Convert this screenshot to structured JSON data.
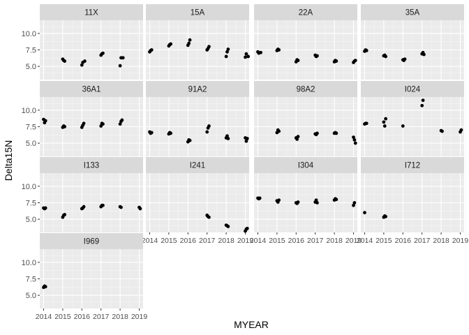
{
  "chart_data": {
    "type": "scatter",
    "xlabel": "MYEAR",
    "ylabel": "Delta15N",
    "x_ticks": [
      2014,
      2015,
      2016,
      2017,
      2018,
      2019
    ],
    "y_ticks": [
      5.0,
      7.5,
      10.0
    ],
    "y_tick_labels": [
      "5.0",
      "7.5",
      "10.0"
    ],
    "xlim": [
      2013.8,
      2019.2
    ],
    "ylim": [
      3.0,
      12.0
    ],
    "grid": true,
    "panels": [
      {
        "name": "11X",
        "points": [
          [
            2015.0,
            6.1
          ],
          [
            2015.05,
            5.9
          ],
          [
            2015.1,
            5.8
          ],
          [
            2016.0,
            5.2
          ],
          [
            2016.05,
            5.6
          ],
          [
            2016.15,
            5.8
          ],
          [
            2017.0,
            6.7
          ],
          [
            2017.05,
            6.9
          ],
          [
            2017.1,
            7.0
          ],
          [
            2018.0,
            5.1
          ],
          [
            2018.05,
            6.3
          ],
          [
            2018.15,
            6.3
          ]
        ]
      },
      {
        "name": "15A",
        "points": [
          [
            2014.0,
            7.2
          ],
          [
            2014.05,
            7.4
          ],
          [
            2014.1,
            7.5
          ],
          [
            2015.0,
            8.1
          ],
          [
            2015.05,
            8.3
          ],
          [
            2015.1,
            8.4
          ],
          [
            2016.0,
            8.2
          ],
          [
            2016.05,
            8.5
          ],
          [
            2016.1,
            9.0
          ],
          [
            2017.0,
            7.5
          ],
          [
            2017.05,
            7.7
          ],
          [
            2017.1,
            8.0
          ],
          [
            2018.0,
            6.5
          ],
          [
            2018.05,
            7.2
          ],
          [
            2018.1,
            7.6
          ],
          [
            2019.0,
            6.4
          ],
          [
            2019.05,
            6.9
          ],
          [
            2019.15,
            6.5
          ]
        ]
      },
      {
        "name": "22A",
        "points": [
          [
            2014.0,
            7.2
          ],
          [
            2014.05,
            7.0
          ],
          [
            2014.15,
            7.1
          ],
          [
            2015.0,
            7.4
          ],
          [
            2015.05,
            7.6
          ],
          [
            2015.1,
            7.5
          ],
          [
            2016.0,
            5.7
          ],
          [
            2016.05,
            6.0
          ],
          [
            2016.1,
            5.9
          ],
          [
            2017.0,
            6.7
          ],
          [
            2017.05,
            6.5
          ],
          [
            2017.1,
            6.6
          ],
          [
            2018.0,
            5.7
          ],
          [
            2018.05,
            5.9
          ],
          [
            2018.1,
            5.8
          ],
          [
            2019.0,
            5.6
          ],
          [
            2019.05,
            5.8
          ],
          [
            2019.1,
            5.9
          ]
        ]
      },
      {
        "name": "35A",
        "points": [
          [
            2014.0,
            7.3
          ],
          [
            2014.05,
            7.5
          ],
          [
            2014.1,
            7.4
          ],
          [
            2015.0,
            6.6
          ],
          [
            2015.05,
            6.7
          ],
          [
            2015.1,
            6.5
          ],
          [
            2016.0,
            6.0
          ],
          [
            2016.05,
            5.9
          ],
          [
            2016.1,
            6.1
          ],
          [
            2017.0,
            6.9
          ],
          [
            2017.05,
            7.1
          ],
          [
            2017.1,
            6.8
          ]
        ]
      },
      {
        "name": "36A1",
        "points": [
          [
            2014.0,
            8.6
          ],
          [
            2014.05,
            8.1
          ],
          [
            2014.1,
            8.4
          ],
          [
            2015.0,
            7.4
          ],
          [
            2015.05,
            7.6
          ],
          [
            2015.1,
            7.5
          ],
          [
            2016.0,
            7.4
          ],
          [
            2016.05,
            7.7
          ],
          [
            2016.1,
            8.0
          ],
          [
            2017.0,
            7.6
          ],
          [
            2017.05,
            8.0
          ],
          [
            2017.1,
            7.9
          ],
          [
            2018.0,
            7.9
          ],
          [
            2018.05,
            8.3
          ],
          [
            2018.1,
            8.5
          ]
        ]
      },
      {
        "name": "91A2",
        "points": [
          [
            2014.0,
            6.7
          ],
          [
            2014.05,
            6.5
          ],
          [
            2014.1,
            6.6
          ],
          [
            2015.0,
            6.4
          ],
          [
            2015.05,
            6.6
          ],
          [
            2015.1,
            6.5
          ],
          [
            2016.0,
            5.2
          ],
          [
            2016.05,
            5.5
          ],
          [
            2016.1,
            5.4
          ],
          [
            2017.0,
            6.7
          ],
          [
            2017.05,
            7.3
          ],
          [
            2017.1,
            7.6
          ],
          [
            2018.0,
            5.8
          ],
          [
            2018.05,
            6.1
          ],
          [
            2018.1,
            5.7
          ],
          [
            2019.0,
            5.8
          ],
          [
            2019.05,
            5.3
          ],
          [
            2019.1,
            5.7
          ]
        ]
      },
      {
        "name": "98A2",
        "points": [
          [
            2015.0,
            6.6
          ],
          [
            2015.05,
            7.0
          ],
          [
            2015.1,
            6.8
          ],
          [
            2016.0,
            5.8
          ],
          [
            2016.05,
            5.6
          ],
          [
            2016.1,
            6.0
          ],
          [
            2017.0,
            6.4
          ],
          [
            2017.05,
            6.3
          ],
          [
            2017.1,
            6.5
          ],
          [
            2018.0,
            6.5
          ],
          [
            2018.05,
            6.6
          ],
          [
            2018.1,
            6.5
          ],
          [
            2019.0,
            5.9
          ],
          [
            2019.05,
            5.5
          ],
          [
            2019.1,
            5.0
          ]
        ]
      },
      {
        "name": "I024",
        "points": [
          [
            2014.0,
            7.9
          ],
          [
            2014.05,
            8.0
          ],
          [
            2014.1,
            8.0
          ],
          [
            2015.0,
            8.2
          ],
          [
            2015.05,
            7.6
          ],
          [
            2015.1,
            8.7
          ],
          [
            2016.0,
            7.6
          ],
          [
            2017.0,
            10.7
          ],
          [
            2017.05,
            11.5
          ],
          [
            2018.0,
            6.9
          ],
          [
            2018.05,
            6.8
          ],
          [
            2019.0,
            6.7
          ],
          [
            2019.05,
            7.0
          ]
        ]
      },
      {
        "name": "I133",
        "points": [
          [
            2014.0,
            6.7
          ],
          [
            2014.05,
            6.6
          ],
          [
            2014.1,
            6.7
          ],
          [
            2015.0,
            5.3
          ],
          [
            2015.05,
            5.6
          ],
          [
            2015.1,
            5.7
          ],
          [
            2016.0,
            6.6
          ],
          [
            2016.05,
            6.7
          ],
          [
            2016.1,
            6.9
          ],
          [
            2017.0,
            6.9
          ],
          [
            2017.05,
            7.1
          ],
          [
            2017.1,
            7.1
          ],
          [
            2018.0,
            6.9
          ],
          [
            2018.05,
            6.8
          ],
          [
            2019.0,
            6.8
          ],
          [
            2019.05,
            6.6
          ]
        ]
      },
      {
        "name": "I241",
        "points": [
          [
            2017.0,
            5.6
          ],
          [
            2017.05,
            5.4
          ],
          [
            2017.1,
            5.3
          ],
          [
            2018.0,
            4.1
          ],
          [
            2018.05,
            4.0
          ],
          [
            2018.1,
            3.9
          ],
          [
            2019.0,
            3.2
          ],
          [
            2019.05,
            3.5
          ],
          [
            2019.1,
            3.6
          ]
        ]
      },
      {
        "name": "I304",
        "points": [
          [
            2014.0,
            8.2
          ],
          [
            2014.05,
            8.1
          ],
          [
            2014.1,
            8.2
          ],
          [
            2015.0,
            7.8
          ],
          [
            2015.05,
            7.6
          ],
          [
            2015.1,
            7.9
          ],
          [
            2016.0,
            7.5
          ],
          [
            2016.05,
            7.4
          ],
          [
            2016.1,
            7.6
          ],
          [
            2017.0,
            7.6
          ],
          [
            2017.05,
            7.9
          ],
          [
            2017.1,
            7.5
          ],
          [
            2018.0,
            7.9
          ],
          [
            2018.05,
            8.1
          ],
          [
            2018.1,
            8.0
          ],
          [
            2019.0,
            7.1
          ],
          [
            2019.05,
            7.5
          ]
        ]
      },
      {
        "name": "I712",
        "points": [
          [
            2014.0,
            6.0
          ],
          [
            2015.0,
            5.3
          ],
          [
            2015.05,
            5.5
          ],
          [
            2015.1,
            5.4
          ]
        ]
      },
      {
        "name": "I969",
        "points": [
          [
            2014.0,
            6.2
          ],
          [
            2014.05,
            6.4
          ],
          [
            2014.1,
            6.3
          ]
        ]
      }
    ]
  }
}
